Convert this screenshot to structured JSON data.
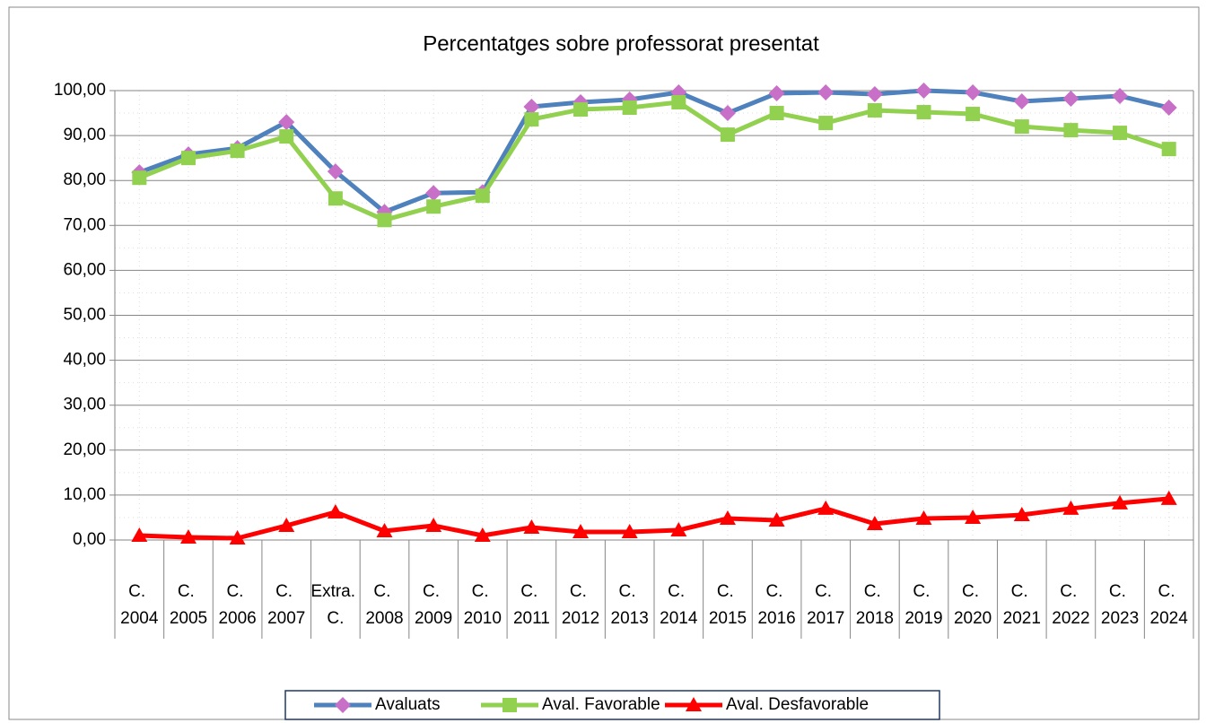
{
  "chart_data": {
    "type": "line",
    "title": "Percentatges sobre professorat presentat",
    "categories": [
      "C. 2004",
      "C. 2005",
      "C. 2006",
      "C. 2007",
      "Extra. C.",
      "C. 2008",
      "C. 2009",
      "C. 2010",
      "C. 2011",
      "C. 2012",
      "C. 2013",
      "C. 2014",
      "C. 2015",
      "C. 2016",
      "C. 2017",
      "C. 2018",
      "C. 2019",
      "C. 2020",
      "C. 2021",
      "C. 2022",
      "C. 2023",
      "C. 2024"
    ],
    "series": [
      {
        "name": "Avaluats",
        "color": "#4f81bd",
        "marker": "diamond",
        "marker_color": "#c86fc8",
        "values": [
          81.8,
          85.8,
          87.2,
          93.0,
          82.0,
          73.0,
          77.2,
          77.4,
          96.4,
          97.4,
          98.0,
          99.6,
          95.0,
          99.4,
          99.6,
          99.2,
          100.0,
          99.6,
          97.6,
          98.2,
          98.8,
          96.2
        ]
      },
      {
        "name": "Aval. Favorable",
        "color": "#92d050",
        "marker": "square",
        "marker_color": "#92d050",
        "values": [
          80.6,
          85.0,
          86.6,
          89.8,
          76.0,
          71.2,
          74.2,
          76.6,
          93.6,
          95.8,
          96.2,
          97.4,
          90.2,
          95.0,
          92.8,
          95.6,
          95.2,
          94.8,
          92.0,
          91.2,
          90.6,
          87.0
        ]
      },
      {
        "name": "Aval. Desfavorable",
        "color": "#ff0000",
        "marker": "triangle",
        "marker_color": "#ff0000",
        "values": [
          1.0,
          0.6,
          0.4,
          3.2,
          6.2,
          2.0,
          3.2,
          1.0,
          2.8,
          1.8,
          1.8,
          2.2,
          4.8,
          4.4,
          7.0,
          3.6,
          4.8,
          5.0,
          5.6,
          7.0,
          8.2,
          9.2
        ]
      }
    ],
    "ylim": [
      0,
      100
    ],
    "yticks": [
      {
        "value": 0,
        "label": "0,00"
      },
      {
        "value": 10,
        "label": "10,00"
      },
      {
        "value": 20,
        "label": "20,00"
      },
      {
        "value": 30,
        "label": "30,00"
      },
      {
        "value": 40,
        "label": "40,00"
      },
      {
        "value": 50,
        "label": "50,00"
      },
      {
        "value": 60,
        "label": "60,00"
      },
      {
        "value": 70,
        "label": "70,00"
      },
      {
        "value": 80,
        "label": "80,00"
      },
      {
        "value": 90,
        "label": "90,00"
      },
      {
        "value": 100,
        "label": "100,00"
      }
    ],
    "grid": true,
    "legend": "bottom"
  }
}
